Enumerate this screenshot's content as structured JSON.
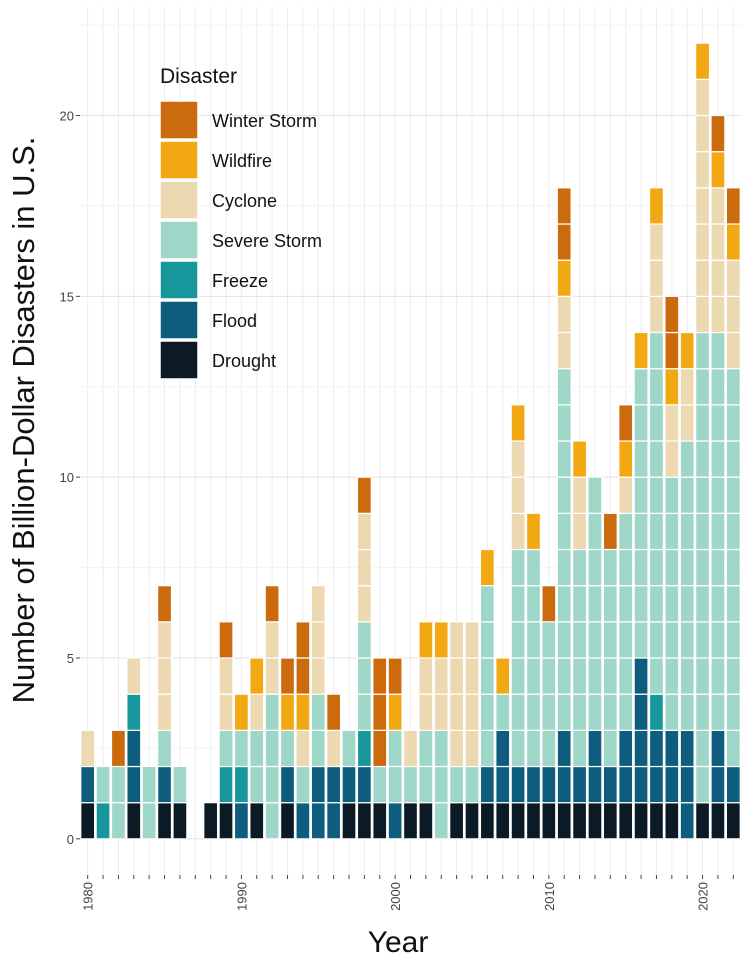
{
  "chart_data": {
    "type": "bar",
    "stacked": true,
    "xlabel": "Year",
    "ylabel": "Number of Billion-Dollar Disasters in U.S.",
    "xticks": [
      1980,
      1990,
      2000,
      2010,
      2020
    ],
    "yticks": [
      0,
      5,
      10,
      15,
      20
    ],
    "ylim": [
      -1,
      23
    ],
    "xlim": [
      1979.5,
      2022.5
    ],
    "grid": true,
    "legend": {
      "title": "Disaster",
      "position": "top-left"
    },
    "categories": [
      1980,
      1981,
      1982,
      1983,
      1984,
      1985,
      1986,
      1987,
      1988,
      1989,
      1990,
      1991,
      1992,
      1993,
      1994,
      1995,
      1996,
      1997,
      1998,
      1999,
      2000,
      2001,
      2002,
      2003,
      2004,
      2005,
      2006,
      2007,
      2008,
      2009,
      2010,
      2011,
      2012,
      2013,
      2014,
      2015,
      2016,
      2017,
      2018,
      2019,
      2020,
      2021,
      2022
    ],
    "series": [
      {
        "name": "Drought",
        "color": "#0b1a24",
        "values": [
          1,
          0,
          0,
          1,
          0,
          1,
          1,
          0,
          1,
          1,
          0,
          1,
          0,
          1,
          0,
          0,
          0,
          1,
          1,
          1,
          0,
          1,
          1,
          0,
          1,
          1,
          1,
          1,
          1,
          1,
          1,
          1,
          1,
          1,
          1,
          1,
          1,
          1,
          1,
          0,
          1,
          1,
          1
        ]
      },
      {
        "name": "Flood",
        "color": "#0e5c7e",
        "values": [
          1,
          0,
          0,
          2,
          0,
          1,
          0,
          0,
          0,
          0,
          1,
          0,
          0,
          1,
          1,
          2,
          2,
          1,
          1,
          0,
          1,
          0,
          0,
          0,
          0,
          0,
          1,
          2,
          1,
          1,
          1,
          2,
          1,
          2,
          1,
          2,
          4,
          2,
          2,
          3,
          0,
          2,
          1
        ]
      },
      {
        "name": "Freeze",
        "color": "#17979c",
        "values": [
          0,
          1,
          0,
          1,
          0,
          0,
          0,
          0,
          0,
          1,
          1,
          0,
          0,
          0,
          0,
          0,
          0,
          0,
          1,
          0,
          0,
          0,
          0,
          0,
          0,
          0,
          0,
          0,
          0,
          0,
          0,
          0,
          0,
          0,
          0,
          0,
          0,
          1,
          0,
          0,
          0,
          0,
          0
        ]
      },
      {
        "name": "Severe Storm",
        "color": "#9ed6c7",
        "values": [
          0,
          1,
          2,
          0,
          2,
          1,
          1,
          0,
          0,
          1,
          1,
          2,
          4,
          1,
          1,
          2,
          0,
          1,
          3,
          1,
          2,
          1,
          2,
          3,
          1,
          1,
          5,
          1,
          6,
          6,
          4,
          10,
          6,
          7,
          6,
          6,
          8,
          10,
          7,
          8,
          13,
          11,
          11
        ]
      },
      {
        "name": "Cyclone",
        "color": "#ecd8b1",
        "values": [
          1,
          0,
          0,
          1,
          0,
          3,
          0,
          0,
          0,
          2,
          0,
          1,
          2,
          0,
          1,
          3,
          1,
          0,
          3,
          0,
          0,
          1,
          2,
          2,
          4,
          4,
          0,
          0,
          3,
          0,
          0,
          2,
          2,
          0,
          0,
          1,
          0,
          3,
          2,
          2,
          7,
          4,
          3
        ]
      },
      {
        "name": "Wildfire",
        "color": "#f2a812",
        "values": [
          0,
          0,
          0,
          0,
          0,
          0,
          0,
          0,
          0,
          0,
          1,
          1,
          0,
          1,
          1,
          0,
          0,
          0,
          0,
          0,
          1,
          0,
          1,
          1,
          0,
          0,
          1,
          1,
          1,
          1,
          0,
          1,
          1,
          0,
          0,
          1,
          1,
          1,
          1,
          1,
          1,
          1,
          1
        ]
      },
      {
        "name": "Winter Storm",
        "color": "#cc6a0e",
        "values": [
          0,
          0,
          1,
          0,
          0,
          1,
          0,
          0,
          0,
          1,
          0,
          0,
          1,
          1,
          2,
          0,
          1,
          0,
          1,
          3,
          1,
          0,
          0,
          0,
          0,
          0,
          0,
          0,
          0,
          0,
          1,
          2,
          0,
          0,
          1,
          1,
          0,
          0,
          2,
          0,
          0,
          1,
          1
        ]
      }
    ]
  }
}
